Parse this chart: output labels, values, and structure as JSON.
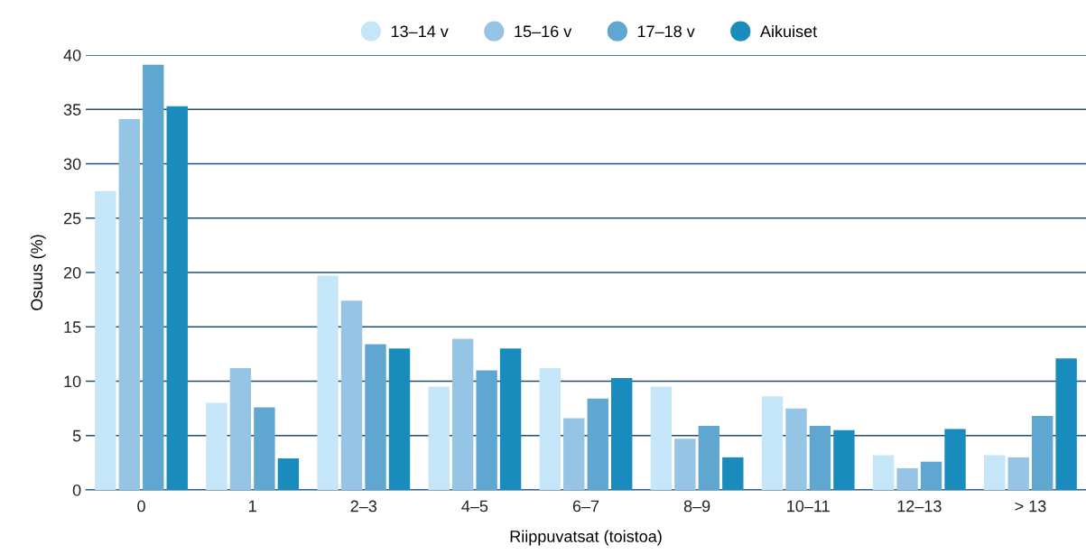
{
  "chart_data": {
    "type": "bar",
    "xlabel": "Riippuvatsat (toistoa)",
    "ylabel": "Osuus (%)",
    "categories": [
      "0",
      "1",
      "2–3",
      "4–5",
      "6–7",
      "8–9",
      "10–11",
      "12–13",
      "> 13"
    ],
    "series": [
      {
        "name": "13–14 v",
        "color": "#c5e6f8",
        "values": [
          27.5,
          8.0,
          19.7,
          9.5,
          11.2,
          9.5,
          8.6,
          3.2,
          3.2
        ]
      },
      {
        "name": "15–16 v",
        "color": "#96c4e4",
        "values": [
          34.1,
          11.2,
          17.4,
          13.9,
          6.6,
          4.7,
          7.5,
          2.0,
          3.0
        ]
      },
      {
        "name": "17–18 v",
        "color": "#5fa6d1",
        "values": [
          39.1,
          7.6,
          13.4,
          11.0,
          8.4,
          5.9,
          5.9,
          2.6,
          6.8
        ]
      },
      {
        "name": "Aikuiset",
        "color": "#1a8bbd",
        "values": [
          35.3,
          2.9,
          13.0,
          13.0,
          10.3,
          3.0,
          5.5,
          5.6,
          12.1
        ]
      }
    ],
    "ylim": [
      0,
      40
    ],
    "yticks": [
      0,
      5,
      10,
      15,
      20,
      25,
      30,
      35,
      40
    ],
    "grid": "y",
    "legend": "top",
    "marker": "circle"
  }
}
